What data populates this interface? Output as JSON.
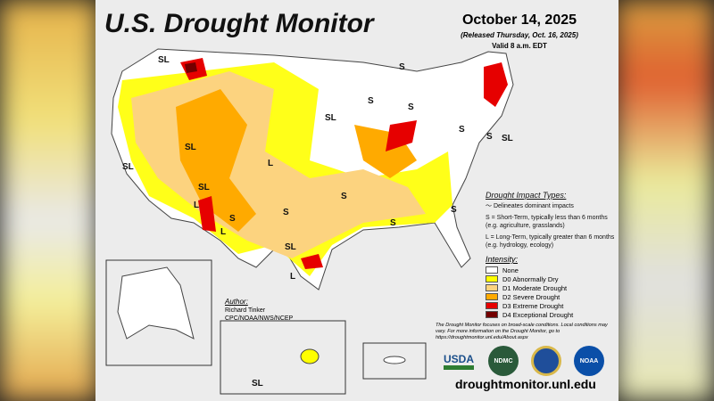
{
  "header": {
    "title": "U.S. Drought Monitor",
    "date": "October 14, 2025",
    "released": "(Released Thursday, Oct. 16, 2025)",
    "valid": "Valid 8 a.m. EDT"
  },
  "map_labels": [
    "SL",
    "SL",
    "SL",
    "SL",
    "L",
    "S",
    "SL",
    "S",
    "S",
    "S",
    "S",
    "SL",
    "S",
    "S",
    "S",
    "S",
    "L",
    "S",
    "SL",
    "L",
    "L",
    "SL"
  ],
  "impact": {
    "title": "Drought Impact Types:",
    "delineates": "Delineates dominant impacts",
    "short_term": "S = Short-Term, typically less than 6 months (e.g. agriculture, grasslands)",
    "long_term": "L = Long-Term, typically greater than 6 months (e.g. hydrology, ecology)"
  },
  "intensity": {
    "title": "Intensity:",
    "items": [
      {
        "label": "None",
        "color": "#ffffff"
      },
      {
        "label": "D0 Abnormally Dry",
        "color": "#ffff00"
      },
      {
        "label": "D1 Moderate Drought",
        "color": "#fcd37f"
      },
      {
        "label": "D2 Severe Drought",
        "color": "#ffaa00"
      },
      {
        "label": "D3 Extreme Drought",
        "color": "#e60000"
      },
      {
        "label": "D4 Exceptional Drought",
        "color": "#730000"
      }
    ]
  },
  "author": {
    "heading": "Author:",
    "name": "Richard Tinker",
    "org": "CPC/NOAA/NWS/NCEP"
  },
  "note": "The Drought Monitor focuses on broad-scale conditions. Local conditions may vary. For more information on the Drought Monitor, go to https://droughtmonitor.unl.edu/About.aspx",
  "logos": [
    "USDA",
    "NDMC",
    "DOC",
    "NOAA"
  ],
  "url": "droughtmonitor.unl.edu"
}
